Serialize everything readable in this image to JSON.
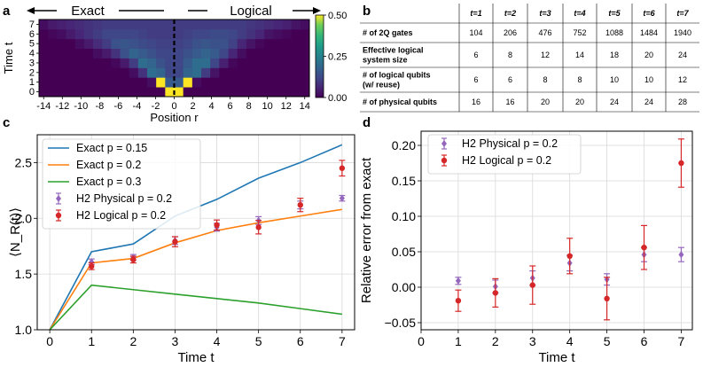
{
  "panel_labels": {
    "a": "a",
    "b": "b",
    "c": "c",
    "d": "d"
  },
  "chart_data": [
    {
      "id": "a",
      "type": "heatmap",
      "arrow_left_label": "Exact",
      "arrow_right_label": "Logical",
      "xlabel": "Position r",
      "ylabel": "Time t",
      "x_ticks": [
        -14,
        -12,
        -10,
        -8,
        -6,
        -4,
        -2,
        0,
        2,
        4,
        6,
        8,
        10,
        12,
        14
      ],
      "x_tick_labels": [
        "-14",
        "-12",
        "-10",
        "-8",
        "-6",
        "-4",
        "-2",
        "0",
        "2",
        "4",
        "6",
        "8",
        "10",
        "12",
        "14"
      ],
      "y_ticks": [
        0,
        1,
        2,
        3,
        4,
        5,
        6,
        7
      ],
      "y_tick_labels": [
        "0",
        "1",
        "2",
        "3",
        "4",
        "5",
        "6",
        "7"
      ],
      "xlim": [
        -14.5,
        14.5
      ],
      "ylim": [
        -0.5,
        7.5
      ],
      "colorbar": {
        "min": 0.0,
        "max": 0.5,
        "ticks": [
          0.0,
          0.25,
          0.5
        ],
        "tick_labels": [
          "0.00",
          "0.25",
          "0.50"
        ]
      },
      "divider_x": 0,
      "grid": [
        [
          0,
          0,
          0,
          0,
          0,
          0,
          0,
          0,
          0,
          0,
          0,
          0,
          0,
          0,
          0.5,
          0.5,
          0,
          0,
          0,
          0,
          0,
          0,
          0,
          0,
          0,
          0,
          0,
          0,
          0,
          0
        ],
        [
          0,
          0,
          0,
          0,
          0,
          0,
          0,
          0,
          0,
          0,
          0,
          0,
          0.02,
          0.5,
          0.16,
          0.16,
          0.5,
          0.02,
          0,
          0,
          0,
          0,
          0,
          0,
          0,
          0,
          0,
          0,
          0,
          0
        ],
        [
          0,
          0,
          0,
          0,
          0,
          0,
          0,
          0,
          0,
          0,
          0.02,
          0.08,
          0.2,
          0.18,
          0.12,
          0.12,
          0.18,
          0.2,
          0.1,
          0.03,
          0,
          0,
          0,
          0,
          0,
          0,
          0,
          0,
          0,
          0
        ],
        [
          0,
          0,
          0,
          0,
          0,
          0,
          0,
          0,
          0.01,
          0.04,
          0.1,
          0.2,
          0.18,
          0.14,
          0.12,
          0.12,
          0.16,
          0.2,
          0.2,
          0.12,
          0.05,
          0.01,
          0,
          0,
          0,
          0,
          0,
          0,
          0,
          0
        ],
        [
          0,
          0,
          0,
          0,
          0,
          0,
          0.02,
          0.04,
          0.08,
          0.14,
          0.18,
          0.16,
          0.14,
          0.12,
          0.12,
          0.12,
          0.14,
          0.16,
          0.18,
          0.16,
          0.12,
          0.06,
          0.02,
          0,
          0,
          0,
          0,
          0,
          0,
          0
        ],
        [
          0,
          0,
          0,
          0,
          0.02,
          0.04,
          0.07,
          0.1,
          0.14,
          0.15,
          0.14,
          0.13,
          0.12,
          0.11,
          0.11,
          0.11,
          0.12,
          0.14,
          0.15,
          0.14,
          0.14,
          0.11,
          0.06,
          0.03,
          0.01,
          0,
          0,
          0,
          0,
          0
        ],
        [
          0,
          0.01,
          0.02,
          0.04,
          0.06,
          0.08,
          0.1,
          0.12,
          0.12,
          0.12,
          0.12,
          0.11,
          0.1,
          0.1,
          0.1,
          0.1,
          0.11,
          0.12,
          0.12,
          0.13,
          0.13,
          0.12,
          0.1,
          0.08,
          0.06,
          0.03,
          0.02,
          0.01,
          0,
          0
        ],
        [
          0.02,
          0.04,
          0.05,
          0.06,
          0.07,
          0.08,
          0.09,
          0.1,
          0.1,
          0.1,
          0.1,
          0.1,
          0.1,
          0.1,
          0.1,
          0.1,
          0.1,
          0.1,
          0.1,
          0.1,
          0.1,
          0.1,
          0.1,
          0.09,
          0.08,
          0.07,
          0.06,
          0.05,
          0.03,
          0.02
        ]
      ]
    },
    {
      "id": "c",
      "type": "line",
      "xlabel": "Time t",
      "ylabel": "⟨N_R(t)⟩",
      "xlim": [
        -0.3,
        7.3
      ],
      "ylim": [
        1.0,
        2.75
      ],
      "x_ticks": [
        0,
        1,
        2,
        3,
        4,
        5,
        6,
        7
      ],
      "y_ticks": [
        1.0,
        1.5,
        2.0,
        2.5
      ],
      "y_tick_labels": [
        "1.0",
        "1.5",
        "2.0",
        "2.5"
      ],
      "grid": true,
      "legend": "top-left",
      "series": [
        {
          "name": "Exact p = 0.15",
          "kind": "line",
          "color": "#1f77b4",
          "x": [
            0,
            1,
            2,
            3,
            4,
            5,
            6,
            7
          ],
          "y": [
            1.0,
            1.7,
            1.77,
            2.02,
            2.17,
            2.36,
            2.5,
            2.66
          ]
        },
        {
          "name": "Exact p = 0.2",
          "kind": "line",
          "color": "#ff7f0e",
          "x": [
            0,
            1,
            2,
            3,
            4,
            5,
            6,
            7
          ],
          "y": [
            1.0,
            1.6,
            1.64,
            1.78,
            1.89,
            1.96,
            2.02,
            2.08
          ]
        },
        {
          "name": "Exact p = 0.3",
          "kind": "line",
          "color": "#2ca02c",
          "x": [
            0,
            1,
            2,
            3,
            4,
            5,
            6,
            7
          ],
          "y": [
            1.0,
            1.4,
            1.36,
            1.32,
            1.28,
            1.24,
            1.19,
            1.14
          ]
        },
        {
          "name": "H2 Physical p = 0.2",
          "kind": "errorbar",
          "marker": "diamond",
          "color": "#9467bd",
          "x": [
            1,
            2,
            3,
            4,
            5,
            6,
            7
          ],
          "y": [
            1.61,
            1.65,
            1.8,
            1.92,
            1.98,
            2.12,
            2.18
          ],
          "err": [
            0.025,
            0.025,
            0.035,
            0.035,
            0.035,
            0.035,
            0.025
          ]
        },
        {
          "name": "H2 Logical p = 0.2",
          "kind": "errorbar",
          "marker": "circle",
          "color": "#d62728",
          "x": [
            1,
            2,
            3,
            4,
            5,
            6,
            7
          ],
          "y": [
            1.57,
            1.63,
            1.79,
            1.94,
            1.92,
            2.12,
            2.45
          ],
          "err": [
            0.03,
            0.03,
            0.045,
            0.045,
            0.06,
            0.06,
            0.07
          ]
        }
      ]
    },
    {
      "id": "d",
      "type": "scatter",
      "xlabel": "Time t",
      "ylabel": "Relative error from exact",
      "xlim": [
        0,
        7.3
      ],
      "ylim": [
        -0.06,
        0.22
      ],
      "x_ticks": [
        0,
        1,
        2,
        3,
        4,
        5,
        6,
        7
      ],
      "y_ticks": [
        -0.05,
        0.0,
        0.05,
        0.1,
        0.15,
        0.2
      ],
      "y_tick_labels": [
        "−0.05",
        "0.00",
        "0.05",
        "0.10",
        "0.15",
        "0.20"
      ],
      "grid": true,
      "legend": "top-left",
      "series": [
        {
          "name": "H2 Physical p = 0.2",
          "kind": "errorbar",
          "marker": "diamond",
          "color": "#9467bd",
          "x": [
            1,
            2,
            3,
            4,
            5,
            6,
            7
          ],
          "y": [
            0.009,
            0.001,
            0.013,
            0.034,
            0.011,
            0.046,
            0.046
          ],
          "err": [
            0.005,
            0.009,
            0.01,
            0.011,
            0.008,
            0.01,
            0.01
          ]
        },
        {
          "name": "H2 Logical p = 0.2",
          "kind": "errorbar",
          "marker": "circle",
          "color": "#d62728",
          "x": [
            1,
            2,
            3,
            4,
            5,
            6,
            7
          ],
          "y": [
            -0.019,
            -0.008,
            0.003,
            0.044,
            -0.016,
            0.056,
            0.175
          ],
          "err": [
            0.015,
            0.02,
            0.027,
            0.025,
            0.03,
            0.031,
            0.034
          ]
        }
      ]
    },
    {
      "id": "b",
      "type": "table",
      "columns": [
        "",
        "t=1",
        "t=2",
        "t=3",
        "t=4",
        "t=5",
        "t=6",
        "t=7"
      ],
      "rows": [
        {
          "label": [
            "# of 2Q gates"
          ],
          "values": [
            "104",
            "206",
            "476",
            "752",
            "1088",
            "1484",
            "1940"
          ]
        },
        {
          "label": [
            "Effective logical",
            "system size"
          ],
          "values": [
            "6",
            "8",
            "12",
            "14",
            "18",
            "20",
            "24"
          ]
        },
        {
          "label": [
            "# of logical qubits",
            "(w/ reuse)"
          ],
          "values": [
            "6",
            "6",
            "8",
            "8",
            "10",
            "10",
            "12"
          ]
        },
        {
          "label": [
            "# of physical qubits"
          ],
          "values": [
            "16",
            "16",
            "20",
            "20",
            "24",
            "24",
            "28"
          ]
        }
      ]
    }
  ]
}
